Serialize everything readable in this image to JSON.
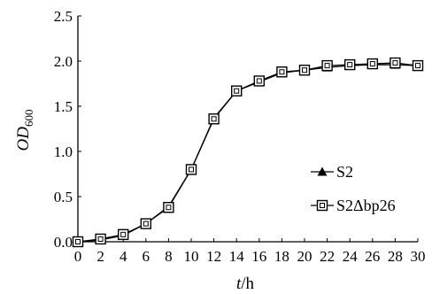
{
  "chart_data": {
    "type": "line",
    "xlabel_italic": "t",
    "xlabel_unit": "/h",
    "ylabel_main": "OD",
    "ylabel_sub": "600",
    "xlim": [
      0,
      30
    ],
    "ylim": [
      0.0,
      2.5
    ],
    "x_ticks": [
      0,
      2,
      4,
      6,
      8,
      10,
      12,
      14,
      16,
      18,
      20,
      22,
      24,
      26,
      28,
      30
    ],
    "y_ticks": [
      0.0,
      0.5,
      1.0,
      1.5,
      2.0,
      2.5
    ],
    "x_tick_labels": [
      "0",
      "2",
      "4",
      "6",
      "8",
      "10",
      "12",
      "14",
      "16",
      "18",
      "20",
      "22",
      "24",
      "26",
      "28",
      "30"
    ],
    "y_tick_labels": [
      "0.0",
      "0.5",
      "1.0",
      "1.5",
      "2.0",
      "2.5"
    ],
    "grid": false,
    "legend_position": "right-middle",
    "x": [
      0,
      2,
      4,
      6,
      8,
      10,
      12,
      14,
      16,
      18,
      20,
      22,
      24,
      26,
      28,
      30
    ],
    "series": [
      {
        "name": "S2",
        "marker": "filled-triangle",
        "values": [
          0.0,
          0.02,
          0.07,
          0.2,
          0.39,
          0.8,
          1.37,
          1.67,
          1.77,
          1.87,
          1.9,
          1.93,
          1.95,
          1.96,
          1.96,
          1.95
        ]
      },
      {
        "name": "S2Δbp26",
        "marker": "open-square",
        "values": [
          0.0,
          0.03,
          0.08,
          0.2,
          0.38,
          0.8,
          1.36,
          1.67,
          1.78,
          1.88,
          1.9,
          1.95,
          1.96,
          1.97,
          1.98,
          1.95
        ]
      }
    ]
  }
}
